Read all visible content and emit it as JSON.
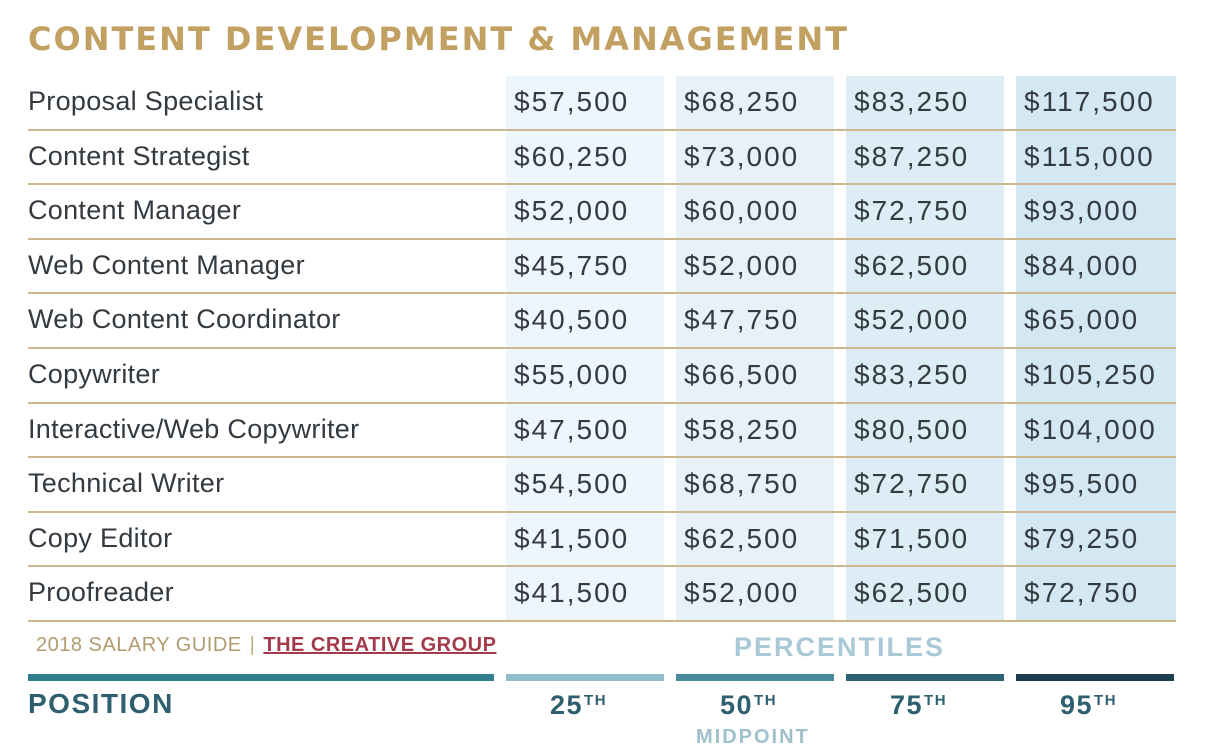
{
  "title": "CONTENT DEVELOPMENT & MANAGEMENT",
  "rows": [
    {
      "position": "Proposal Specialist",
      "p25": "$57,500",
      "p50": "$68,250",
      "p75": "$83,250",
      "p95": "$117,500"
    },
    {
      "position": "Content Strategist",
      "p25": "$60,250",
      "p50": "$73,000",
      "p75": "$87,250",
      "p95": "$115,000"
    },
    {
      "position": "Content Manager",
      "p25": "$52,000",
      "p50": "$60,000",
      "p75": "$72,750",
      "p95": "$93,000"
    },
    {
      "position": "Web Content Manager",
      "p25": "$45,750",
      "p50": "$52,000",
      "p75": "$62,500",
      "p95": "$84,000"
    },
    {
      "position": "Web Content Coordinator",
      "p25": "$40,500",
      "p50": "$47,750",
      "p75": "$52,000",
      "p95": "$65,000"
    },
    {
      "position": "Copywriter",
      "p25": "$55,000",
      "p50": "$66,500",
      "p75": "$83,250",
      "p95": "$105,250"
    },
    {
      "position": "Interactive/Web Copywriter",
      "p25": "$47,500",
      "p50": "$58,250",
      "p75": "$80,500",
      "p95": "$104,000"
    },
    {
      "position": "Technical Writer",
      "p25": "$54,500",
      "p50": "$68,750",
      "p75": "$72,750",
      "p95": "$95,500"
    },
    {
      "position": "Copy Editor",
      "p25": "$41,500",
      "p50": "$62,500",
      "p75": "$71,500",
      "p95": "$79,250"
    },
    {
      "position": "Proofreader",
      "p25": "$41,500",
      "p50": "$52,000",
      "p75": "$62,500",
      "p95": "$72,750"
    }
  ],
  "footer": {
    "guide": "2018 SALARY GUIDE",
    "separator": "|",
    "org": "THE CREATIVE GROUP"
  },
  "header": {
    "percentiles": "PERCENTILES",
    "position": "POSITION",
    "p25": {
      "num": "25",
      "suffix": "TH"
    },
    "p50": {
      "num": "50",
      "suffix": "TH"
    },
    "p75": {
      "num": "75",
      "suffix": "TH"
    },
    "p95": {
      "num": "95",
      "suffix": "TH"
    },
    "midpoint": "MIDPOINT"
  },
  "colors": {
    "title": "#c2a062",
    "row_rule": "#cdb78f",
    "header_text": "#2d5f6e",
    "org_link": "#a33a4a"
  }
}
